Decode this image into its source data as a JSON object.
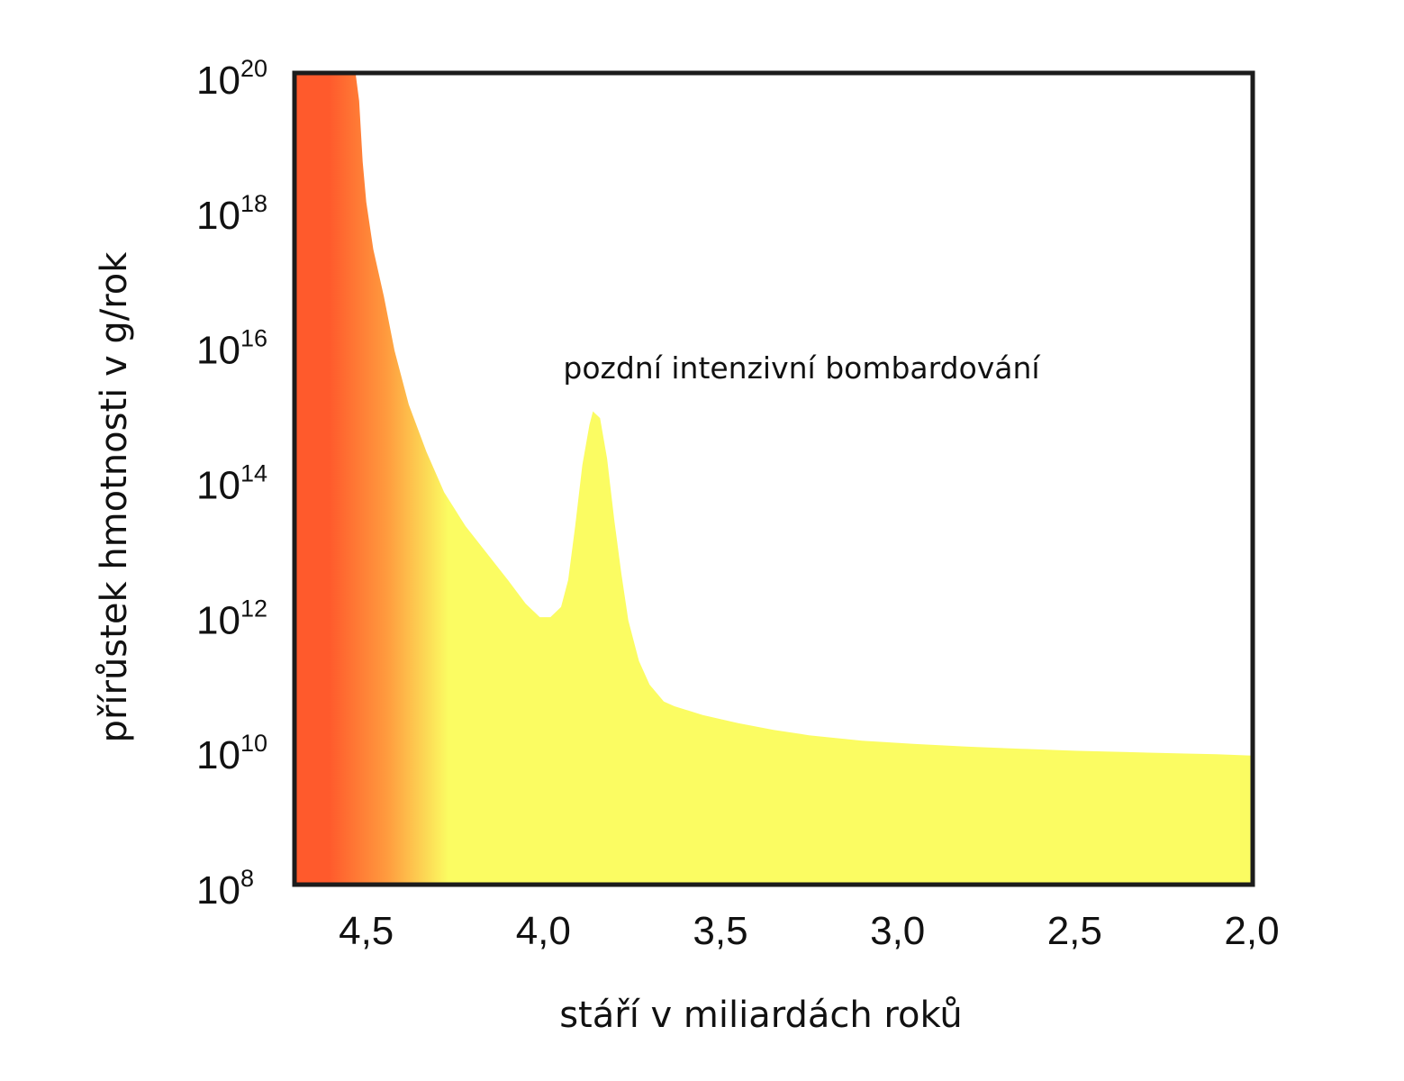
{
  "chart_data": {
    "type": "area",
    "title": "",
    "xlabel": "stáří v miliardách roků",
    "ylabel": "přírůstek hmotnosti v g/rok",
    "x_unit": "miliardy roků (věk)",
    "x_reversed": true,
    "xlim": [
      4.7,
      2.0
    ],
    "ylim_log10": [
      8,
      20
    ],
    "y_scale": "log",
    "x_ticks": [
      {
        "value": 4.5,
        "label": "4,5"
      },
      {
        "value": 4.0,
        "label": "4,0"
      },
      {
        "value": 3.5,
        "label": "3,5"
      },
      {
        "value": 3.0,
        "label": "3,0"
      },
      {
        "value": 2.5,
        "label": "2,5"
      },
      {
        "value": 2.0,
        "label": "2,0"
      }
    ],
    "y_ticks": [
      {
        "exp": 20,
        "base": "10",
        "sup": "20"
      },
      {
        "exp": 18,
        "base": "10",
        "sup": "18"
      },
      {
        "exp": 16,
        "base": "10",
        "sup": "16"
      },
      {
        "exp": 14,
        "base": "10",
        "sup": "14"
      },
      {
        "exp": 12,
        "base": "10",
        "sup": "12"
      },
      {
        "exp": 10,
        "base": "10",
        "sup": "10"
      },
      {
        "exp": 8,
        "base": "10",
        "sup": "8"
      }
    ],
    "annotation": {
      "text": "pozdní intenzivní bombardování",
      "x": 3.18,
      "log10_y": 16.2
    },
    "series": [
      {
        "x": [
          4.7,
          4.53,
          4.52,
          4.51,
          4.5,
          4.48,
          4.45,
          4.42,
          4.38,
          4.33,
          4.28,
          4.22,
          4.16,
          4.1,
          4.05,
          4.01,
          3.98,
          3.95,
          3.93,
          3.91,
          3.89,
          3.87,
          3.86,
          3.84,
          3.82,
          3.8,
          3.78,
          3.76,
          3.73,
          3.7,
          3.66,
          3.63,
          3.55,
          3.45,
          3.35,
          3.25,
          3.1,
          2.95,
          2.8,
          2.65,
          2.5,
          2.35,
          2.2,
          2.1,
          2.0
        ],
        "log10_y": [
          20,
          20,
          19.6,
          18.7,
          18.1,
          17.4,
          16.7,
          15.9,
          15.1,
          14.4,
          13.8,
          13.3,
          12.9,
          12.5,
          12.15,
          11.95,
          11.95,
          12.1,
          12.5,
          13.3,
          14.2,
          14.8,
          15.0,
          14.9,
          14.3,
          13.4,
          12.6,
          11.9,
          11.3,
          10.95,
          10.7,
          10.63,
          10.5,
          10.38,
          10.28,
          10.2,
          10.12,
          10.07,
          10.03,
          10.0,
          9.97,
          9.95,
          9.93,
          9.92,
          9.9
        ]
      }
    ],
    "colors": {
      "fill_hot": "#ff5a2c",
      "fill_mid": "#ff9a3e",
      "fill_main": "#fbfc62",
      "frame": "#1c1c1c",
      "text": "#111111"
    }
  }
}
